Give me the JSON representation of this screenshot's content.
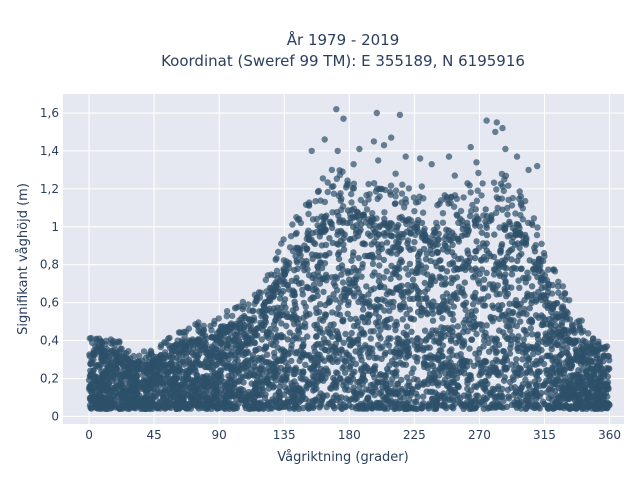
{
  "chart_data": {
    "type": "scatter",
    "title_line1": "År 1979 - 2019",
    "title_line2": "Koordinat (Sweref 99 TM): E 355189, N 6195916",
    "xlabel": "Vågriktning (grader)",
    "ylabel": "Signifikant våghöjd (m)",
    "xlim": [
      -18,
      370
    ],
    "ylim": [
      -0.04,
      1.7
    ],
    "xticks": [
      0,
      45,
      90,
      135,
      180,
      225,
      270,
      315,
      360
    ],
    "xtick_labels": [
      "0",
      "45",
      "90",
      "135",
      "180",
      "225",
      "270",
      "315",
      "360"
    ],
    "yticks": [
      0,
      0.2,
      0.4,
      0.6,
      0.8,
      1.0,
      1.2,
      1.4,
      1.6
    ],
    "ytick_labels": [
      "0",
      "0,2",
      "0,4",
      "0,6",
      "0,8",
      "1",
      "1,2",
      "1,4",
      "1,6"
    ],
    "grid": true,
    "marker_color": "#2e5069",
    "plot_bg": "#e5e8f0",
    "envelope": {
      "description_points_direction_deg": [
        0,
        10,
        20,
        30,
        45,
        60,
        75,
        90,
        105,
        120,
        135,
        150,
        165,
        180,
        195,
        210,
        225,
        240,
        255,
        270,
        285,
        300,
        315,
        330,
        345,
        360
      ],
      "max_height_m": [
        0.35,
        0.36,
        0.34,
        0.3,
        0.3,
        0.38,
        0.42,
        0.45,
        0.52,
        0.58,
        0.82,
        0.95,
        1.1,
        1.1,
        1.05,
        1.05,
        1.05,
        1.0,
        1.0,
        1.1,
        1.1,
        1.0,
        0.78,
        0.55,
        0.38,
        0.32
      ],
      "min_height_m": 0.04
    },
    "outliers": [
      {
        "x": 171,
        "y": 1.62
      },
      {
        "x": 199,
        "y": 1.6
      },
      {
        "x": 215,
        "y": 1.59
      },
      {
        "x": 275,
        "y": 1.56
      },
      {
        "x": 282,
        "y": 1.55
      },
      {
        "x": 286,
        "y": 1.52
      },
      {
        "x": 281,
        "y": 1.5
      },
      {
        "x": 176,
        "y": 1.57
      },
      {
        "x": 209,
        "y": 1.47
      },
      {
        "x": 197,
        "y": 1.45
      },
      {
        "x": 204,
        "y": 1.43
      },
      {
        "x": 187,
        "y": 1.41
      },
      {
        "x": 172,
        "y": 1.4
      },
      {
        "x": 264,
        "y": 1.42
      },
      {
        "x": 288,
        "y": 1.41
      },
      {
        "x": 154,
        "y": 1.4
      },
      {
        "x": 163,
        "y": 1.46
      },
      {
        "x": 296,
        "y": 1.37
      },
      {
        "x": 229,
        "y": 1.36
      },
      {
        "x": 219,
        "y": 1.37
      },
      {
        "x": 249,
        "y": 1.37
      },
      {
        "x": 200,
        "y": 1.35
      },
      {
        "x": 183,
        "y": 1.33
      },
      {
        "x": 237,
        "y": 1.33
      },
      {
        "x": 268,
        "y": 1.34
      },
      {
        "x": 310,
        "y": 1.32
      },
      {
        "x": 304,
        "y": 1.3
      },
      {
        "x": 168,
        "y": 1.3
      },
      {
        "x": 212,
        "y": 1.28
      },
      {
        "x": 253,
        "y": 1.27
      }
    ]
  }
}
